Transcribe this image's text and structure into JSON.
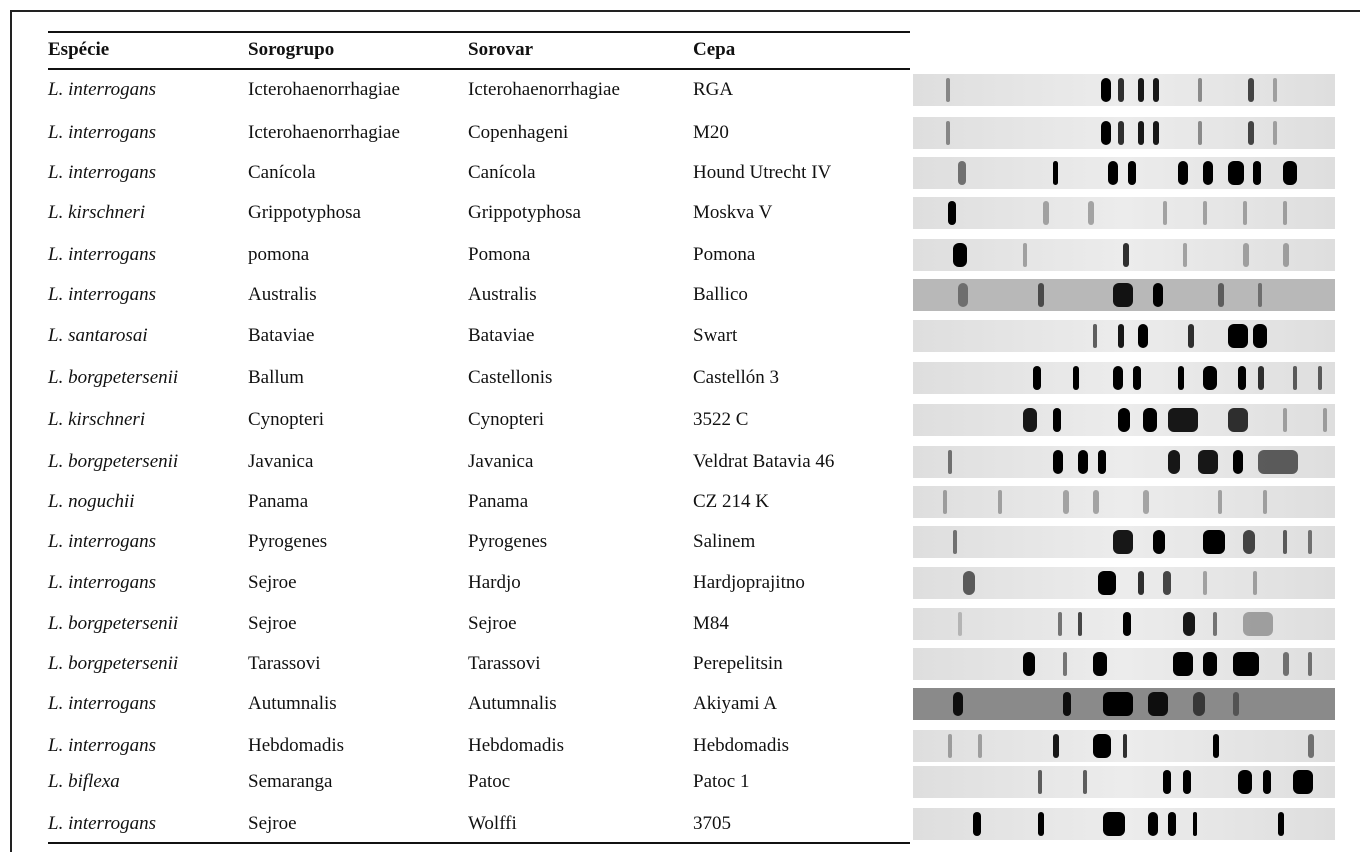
{
  "table": {
    "header": [
      "Espécie",
      "Sorogrupo",
      "Sorovar",
      "Cepa"
    ],
    "rows": [
      [
        "L. interrogans",
        "Icterohaenorrhagiae",
        "Icterohaenorrhagiae",
        "RGA"
      ],
      [
        "L. interrogans",
        "Icterohaenorrhagiae",
        "Copenhageni",
        "M20"
      ],
      [
        "L. interrogans",
        "Canícola",
        "Canícola",
        "Hound Utrecht IV"
      ],
      [
        "L. kirschneri",
        "Grippotyphosa",
        "Grippotyphosa",
        "Moskva V"
      ],
      [
        "L. interrogans",
        "pomona",
        "Pomona",
        "Pomona"
      ],
      [
        "L. interrogans",
        "Australis",
        "Australis",
        "Ballico"
      ],
      [
        "L. santarosai",
        "Bataviae",
        "Bataviae",
        "Swart"
      ],
      [
        "L. borgpetersenii",
        "Ballum",
        "Castellonis",
        "Castellón 3"
      ],
      [
        "L. kirschneri",
        "Cynopteri",
        "Cynopteri",
        "3522 C"
      ],
      [
        "L. borgpetersenii",
        "Javanica",
        "Javanica",
        "Veldrat Batavia 46"
      ],
      [
        "L. noguchii",
        "Panama",
        "Panama",
        "CZ 214 K"
      ],
      [
        "L. interrogans",
        "Pyrogenes",
        "Pyrogenes",
        "Salinem"
      ],
      [
        "L. interrogans",
        "Sejroe",
        "Hardjo",
        "Hardjoprajitno"
      ],
      [
        "L. borgpetersenii",
        "Sejroe",
        "Sejroe",
        "M84"
      ],
      [
        "L. borgpetersenii",
        "Tarassovi",
        "Tarassovi",
        "Perepelitsin"
      ],
      [
        "L. interrogans",
        "Autumnalis",
        "Autumnalis",
        "Akiyami A"
      ],
      [
        "L. interrogans",
        "Hebdomadis",
        "Hebdomadis",
        "Hebdomadis"
      ],
      [
        "L. biflexa",
        "Semaranga",
        "Patoc",
        "Patoc 1"
      ],
      [
        "L. interrogans",
        "Sejroe",
        "Wolffi",
        "3705"
      ]
    ]
  }
}
